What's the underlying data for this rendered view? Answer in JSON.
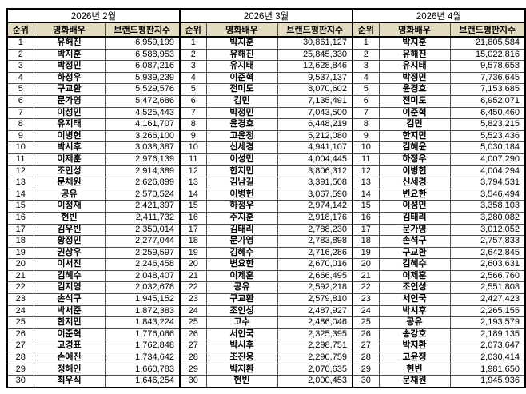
{
  "columns": [
    "순위",
    "영화배우",
    "브랜드평판지수"
  ],
  "colors": {
    "header_bg": "#e4dcc0",
    "border_outer": "#000000",
    "border_inner": "#4d4d4d",
    "text": "#000000"
  },
  "sections": [
    {
      "title": "2026년 2월",
      "rows": [
        [
          "1",
          "유해진",
          "6,959,199"
        ],
        [
          "2",
          "박지훈",
          "6,588,953"
        ],
        [
          "3",
          "박정민",
          "6,087,216"
        ],
        [
          "4",
          "하정우",
          "5,939,239"
        ],
        [
          "5",
          "구교환",
          "5,529,576"
        ],
        [
          "6",
          "문가영",
          "5,472,686"
        ],
        [
          "7",
          "이성민",
          "4,525,443"
        ],
        [
          "8",
          "유지태",
          "4,161,707"
        ],
        [
          "9",
          "이병헌",
          "3,266,100"
        ],
        [
          "10",
          "박시후",
          "3,038,387"
        ],
        [
          "11",
          "이제훈",
          "2,976,139"
        ],
        [
          "12",
          "조인성",
          "2,914,389"
        ],
        [
          "13",
          "문채원",
          "2,626,899"
        ],
        [
          "14",
          "공유",
          "2,570,524"
        ],
        [
          "15",
          "이정재",
          "2,421,397"
        ],
        [
          "16",
          "현빈",
          "2,411,732"
        ],
        [
          "17",
          "김우빈",
          "2,350,014"
        ],
        [
          "18",
          "황정민",
          "2,277,044"
        ],
        [
          "19",
          "권상우",
          "2,259,597"
        ],
        [
          "20",
          "이서진",
          "2,246,458"
        ],
        [
          "21",
          "김혜수",
          "2,048,407"
        ],
        [
          "22",
          "김지영",
          "2,032,678"
        ],
        [
          "23",
          "손석구",
          "1,945,152"
        ],
        [
          "24",
          "박서준",
          "1,872,383"
        ],
        [
          "25",
          "한지민",
          "1,843,224"
        ],
        [
          "26",
          "이준혁",
          "1,776,066"
        ],
        [
          "27",
          "고경표",
          "1,762,848"
        ],
        [
          "28",
          "손예진",
          "1,734,642"
        ],
        [
          "29",
          "정해인",
          "1,660,783"
        ],
        [
          "30",
          "최우식",
          "1,646,254"
        ]
      ]
    },
    {
      "title": "2026년 3월",
      "rows": [
        [
          "1",
          "박지훈",
          "30,861,127"
        ],
        [
          "2",
          "유해진",
          "25,845,330"
        ],
        [
          "3",
          "유지태",
          "12,628,846"
        ],
        [
          "4",
          "이준혁",
          "9,537,137"
        ],
        [
          "5",
          "전미도",
          "8,070,602"
        ],
        [
          "6",
          "김민",
          "7,135,491"
        ],
        [
          "7",
          "박정민",
          "7,043,500"
        ],
        [
          "8",
          "윤경호",
          "6,448,219"
        ],
        [
          "9",
          "고윤정",
          "5,212,080"
        ],
        [
          "10",
          "신세경",
          "4,941,107"
        ],
        [
          "11",
          "이성민",
          "4,004,445"
        ],
        [
          "12",
          "한지민",
          "3,806,312"
        ],
        [
          "13",
          "김남길",
          "3,391,508"
        ],
        [
          "14",
          "이병헌",
          "3,067,590"
        ],
        [
          "15",
          "하정우",
          "2,974,142"
        ],
        [
          "16",
          "주지훈",
          "2,918,176"
        ],
        [
          "17",
          "김태리",
          "2,788,230"
        ],
        [
          "18",
          "문가영",
          "2,783,898"
        ],
        [
          "19",
          "김혜수",
          "2,716,286"
        ],
        [
          "20",
          "변요한",
          "2,670,016"
        ],
        [
          "21",
          "이제훈",
          "2,666,495"
        ],
        [
          "22",
          "공유",
          "2,592,218"
        ],
        [
          "23",
          "구교환",
          "2,579,810"
        ],
        [
          "24",
          "조인성",
          "2,487,927"
        ],
        [
          "25",
          "고수",
          "2,486,046"
        ],
        [
          "26",
          "서인국",
          "2,325,395"
        ],
        [
          "27",
          "박시후",
          "2,298,751"
        ],
        [
          "28",
          "조진웅",
          "2,290,759"
        ],
        [
          "29",
          "박지환",
          "2,070,635"
        ],
        [
          "30",
          "현빈",
          "2,000,453"
        ]
      ]
    },
    {
      "title": "2026년 4월",
      "rows": [
        [
          "1",
          "박지훈",
          "21,805,584"
        ],
        [
          "2",
          "유해진",
          "15,022,816"
        ],
        [
          "3",
          "유지태",
          "9,578,658"
        ],
        [
          "4",
          "박정민",
          "7,736,645"
        ],
        [
          "5",
          "윤경호",
          "7,153,685"
        ],
        [
          "6",
          "전미도",
          "6,952,071"
        ],
        [
          "7",
          "이준혁",
          "6,450,460"
        ],
        [
          "8",
          "김민",
          "5,823,215"
        ],
        [
          "9",
          "한지민",
          "5,523,436"
        ],
        [
          "10",
          "김혜윤",
          "5,030,184"
        ],
        [
          "11",
          "하정우",
          "4,007,290"
        ],
        [
          "12",
          "이병헌",
          "4,004,294"
        ],
        [
          "13",
          "신세경",
          "3,794,531"
        ],
        [
          "14",
          "변요한",
          "3,546,494"
        ],
        [
          "15",
          "이성민",
          "3,358,103"
        ],
        [
          "16",
          "김태리",
          "3,280,082"
        ],
        [
          "17",
          "문가영",
          "3,012,052"
        ],
        [
          "18",
          "손석구",
          "2,757,833"
        ],
        [
          "19",
          "구교환",
          "2,642,845"
        ],
        [
          "20",
          "김혜수",
          "2,603,631"
        ],
        [
          "21",
          "이제훈",
          "2,566,760"
        ],
        [
          "22",
          "조인성",
          "2,551,808"
        ],
        [
          "23",
          "서인국",
          "2,427,423"
        ],
        [
          "24",
          "박시후",
          "2,265,155"
        ],
        [
          "25",
          "공유",
          "2,193,579"
        ],
        [
          "26",
          "송강호",
          "2,189,135"
        ],
        [
          "27",
          "박지환",
          "2,073,647"
        ],
        [
          "28",
          "고윤정",
          "2,030,414"
        ],
        [
          "29",
          "현빈",
          "1,981,650"
        ],
        [
          "30",
          "문채원",
          "1,945,936"
        ]
      ]
    }
  ]
}
